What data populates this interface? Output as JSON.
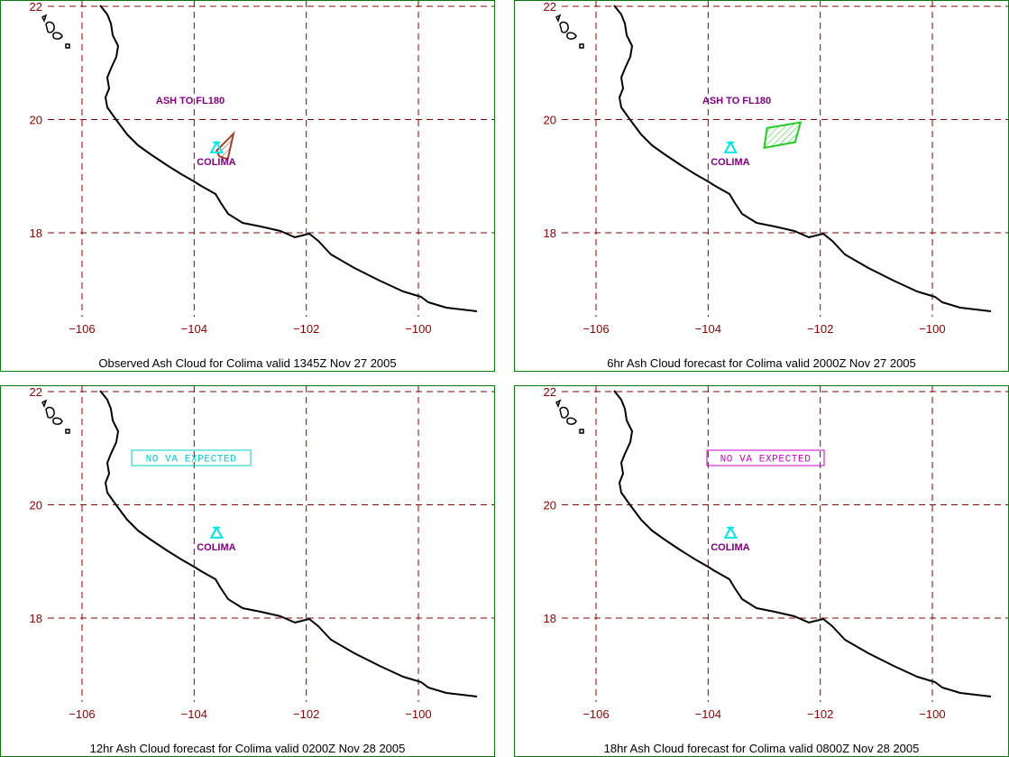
{
  "colors": {
    "border": "#0a7a0a",
    "grid": "#8b0000",
    "tick_label": "#8b0000",
    "coastline": "#000000",
    "volcano_label": "#800080",
    "volcano_icon": "#00e5e5",
    "ash_label": "#800080",
    "observed_cloud": "#a0402a",
    "forecast_cloud": "#22cc22",
    "no_va_cyan": "#00cccc",
    "no_va_magenta": "#cc00cc"
  },
  "axes": {
    "lat_ticks": [
      22,
      20,
      18
    ],
    "lon_ticks": [
      -106,
      -104,
      -102,
      -100
    ],
    "lat_labels": [
      "22",
      "20",
      "18"
    ],
    "lon_labels": [
      "−106",
      "−104",
      "−102",
      "−100"
    ]
  },
  "volcano": {
    "name": "COLIMA",
    "lon": -103.6,
    "lat": 19.5,
    "icon": "volcano-triangle-icon"
  },
  "panels": [
    {
      "caption": "Observed Ash Cloud for Colima valid 1345Z Nov 27 2005",
      "ash_label": "ASH TO FL180",
      "cloud": {
        "kind": "observed",
        "polygon": [
          [
            -103.6,
            19.45
          ],
          [
            -103.3,
            19.75
          ],
          [
            -103.4,
            19.3
          ],
          [
            -103.55,
            19.35
          ]
        ]
      },
      "no_va": null
    },
    {
      "caption": "6hr Ash Cloud forecast for Colima valid 2000Z Nov 27 2005",
      "ash_label": "ASH TO FL180",
      "cloud": {
        "kind": "forecast",
        "polygon": [
          [
            -102.95,
            19.85
          ],
          [
            -102.35,
            19.95
          ],
          [
            -102.45,
            19.6
          ],
          [
            -103.0,
            19.5
          ]
        ]
      },
      "no_va": null
    },
    {
      "caption": "12hr Ash Cloud forecast for Colima valid 0200Z Nov 28 2005",
      "ash_label": "",
      "cloud": null,
      "no_va": {
        "text": "NO VA EXPECTED",
        "color": "cyan"
      }
    },
    {
      "caption": "18hr Ash Cloud forecast for Colima valid 0800Z Nov 28 2005",
      "ash_label": "",
      "cloud": null,
      "no_va": {
        "text": "NO VA EXPECTED",
        "color": "magenta"
      }
    }
  ]
}
